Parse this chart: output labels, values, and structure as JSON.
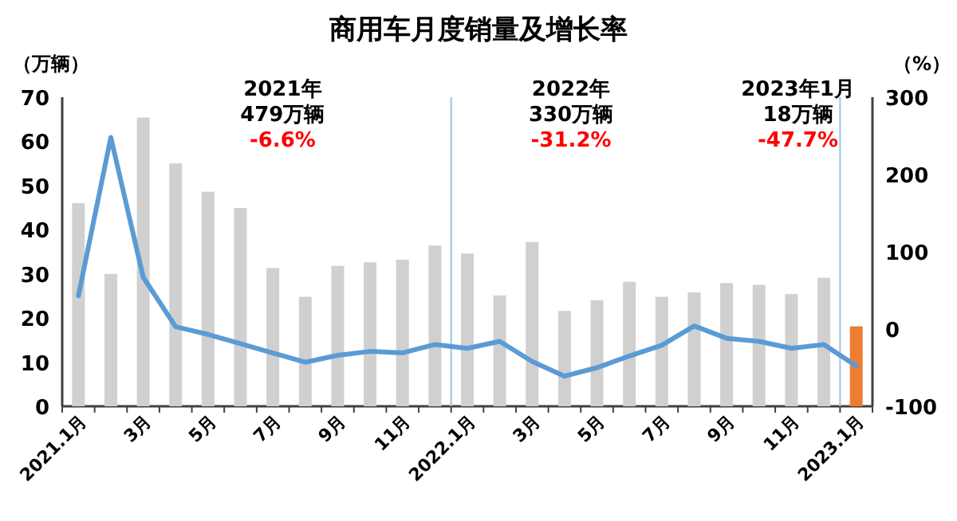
{
  "chart_data": {
    "type": "bar",
    "title": "商用车月度销量及增长率",
    "ylabel": "（万辆）",
    "y2label": "（%）",
    "categories": [
      "2021.1月",
      null,
      "3月",
      null,
      "5月",
      null,
      "7月",
      null,
      "9月",
      null,
      "11月",
      null,
      "2022.1月",
      null,
      "3月",
      null,
      "5月",
      null,
      "7月",
      null,
      "9月",
      null,
      "11月",
      null,
      "2023.1月"
    ],
    "series": [
      {
        "colors": [
          "#d0d0d0",
          "#d0d0d0",
          "#d0d0d0",
          "#d0d0d0",
          "#d0d0d0",
          "#d0d0d0",
          "#d0d0d0",
          "#d0d0d0",
          "#d0d0d0",
          "#d0d0d0",
          "#d0d0d0",
          "#d0d0d0",
          "#d0d0d0",
          "#d0d0d0",
          "#d0d0d0",
          "#d0d0d0",
          "#d0d0d0",
          "#d0d0d0",
          "#d0d0d0",
          "#d0d0d0",
          "#d0d0d0",
          "#d0d0d0",
          "#d0d0d0",
          "#d0d0d0",
          "#ed7d31"
        ],
        "values": [
          46,
          30,
          65.4,
          55,
          48.6,
          44.9,
          31.3,
          24.8,
          31.8,
          32.6,
          33.2,
          36.4,
          34.6,
          25.1,
          37.2,
          21.6,
          24,
          28.2,
          24.8,
          25.8,
          27.9,
          27.5,
          25.4,
          29.1,
          18.1
        ]
      },
      {
        "type": "line",
        "axis": "y2",
        "color": "#5b9bd5",
        "values": [
          43,
          248,
          67,
          3,
          -7,
          -19,
          -31,
          -43,
          -34,
          -29,
          -31,
          -20,
          -25,
          -16,
          -42,
          -61,
          -50,
          -35,
          -21,
          4,
          -12,
          -16,
          -25,
          -20,
          -47.7
        ]
      }
    ],
    "ylim": [
      0,
      70
    ],
    "yticks": [
      0,
      10,
      20,
      30,
      40,
      50,
      60,
      70
    ],
    "y2lim": [
      -100,
      300
    ],
    "y2ticks": [
      -100,
      0,
      100,
      200,
      300
    ],
    "annotations": [
      "2021年",
      "479万辆",
      "-6.6%",
      "2022年",
      "330万辆",
      "-31.2%",
      "2023年1月",
      "18万辆",
      "-47.7%"
    ]
  }
}
